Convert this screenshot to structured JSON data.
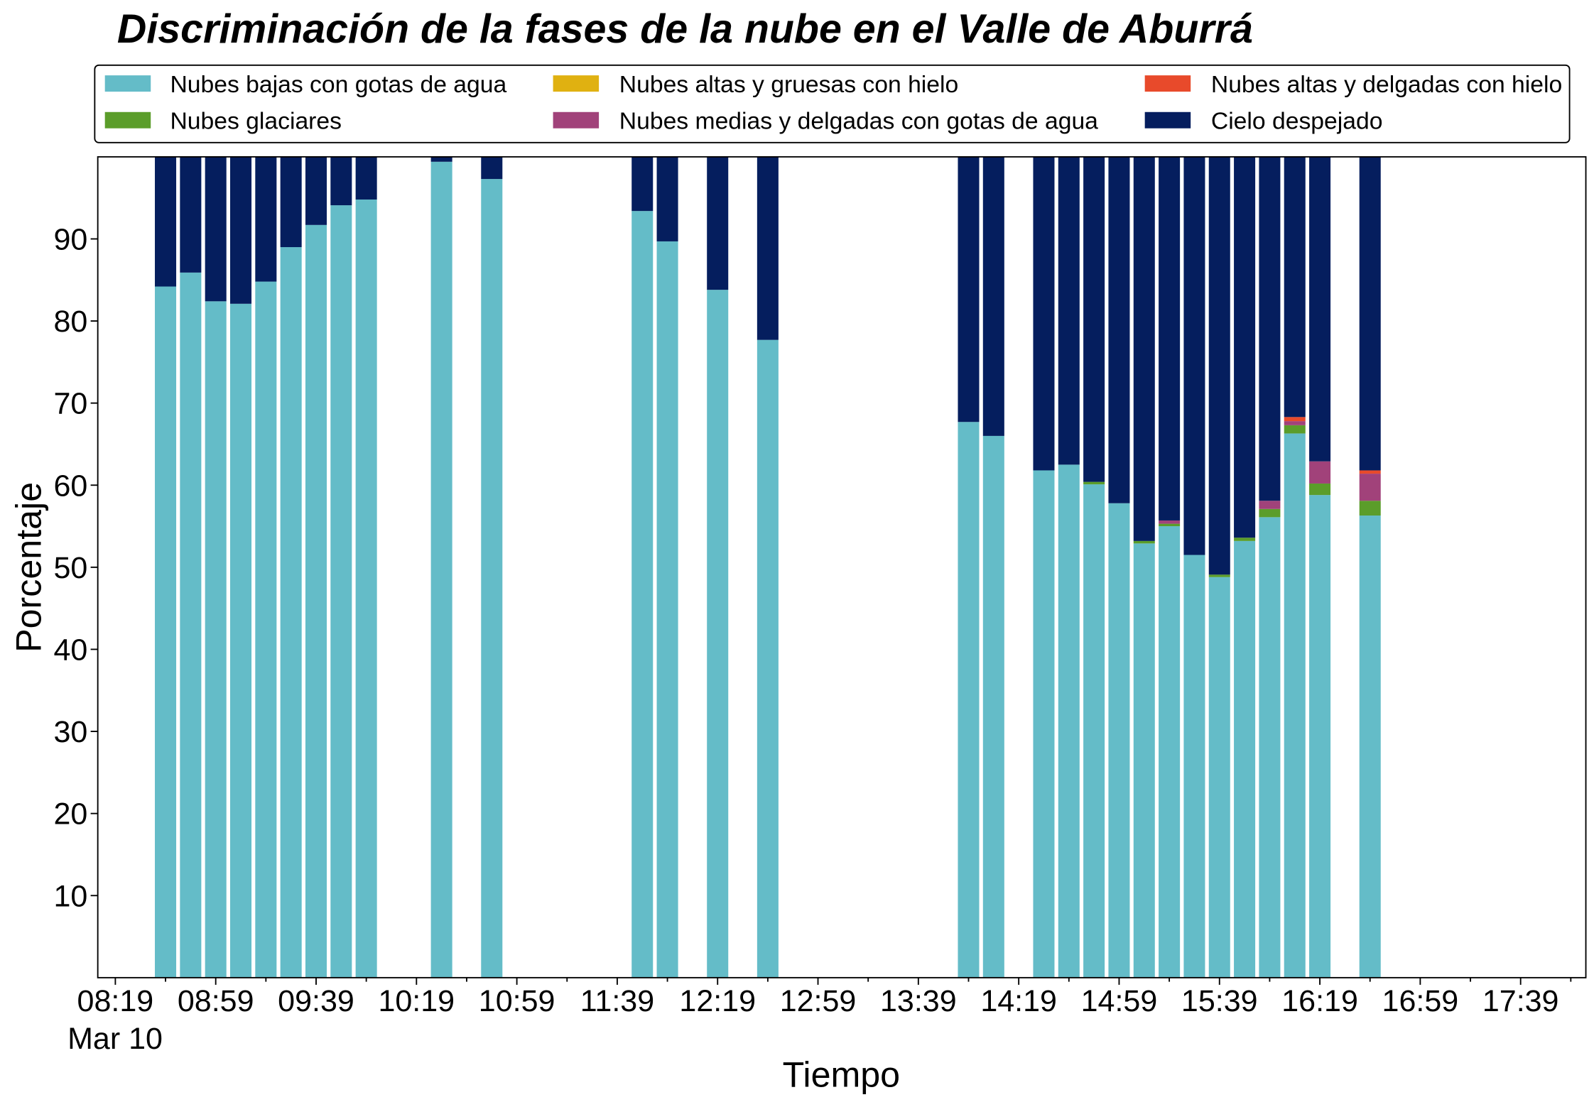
{
  "chart_data": {
    "type": "bar",
    "stacked": true,
    "title": "Discriminación de la fases de la nube en el Valle de Aburrá",
    "xlabel": "Tiempo",
    "ylabel": "Porcentaje",
    "x_date_label": "Mar 10",
    "xlim": [
      "08:12",
      "18:05"
    ],
    "ylim": [
      0,
      100
    ],
    "xticks": [
      "08:19",
      "08:59",
      "09:39",
      "10:19",
      "10:59",
      "11:39",
      "12:19",
      "12:59",
      "13:39",
      "14:19",
      "14:59",
      "15:39",
      "16:19",
      "16:59",
      "17:39"
    ],
    "yticks": [
      10,
      20,
      30,
      40,
      50,
      60,
      70,
      80,
      90
    ],
    "grid": false,
    "legend_position": "top",
    "x": [
      "08:39",
      "08:49",
      "08:59",
      "09:09",
      "09:19",
      "09:29",
      "09:39",
      "09:49",
      "09:59",
      "10:29",
      "10:49",
      "11:49",
      "11:59",
      "12:19",
      "12:39",
      "13:59",
      "14:09",
      "14:29",
      "14:39",
      "14:49",
      "14:59",
      "15:09",
      "15:19",
      "15:29",
      "15:39",
      "15:49",
      "15:59",
      "16:09",
      "16:19",
      "16:39"
    ],
    "series": [
      {
        "name": "Nubes bajas con gotas de agua",
        "color": "#64bcc8",
        "values": [
          84.2,
          85.9,
          82.4,
          82.1,
          84.8,
          89.0,
          91.7,
          94.1,
          94.8,
          99.4,
          97.3,
          93.4,
          89.7,
          83.8,
          77.7,
          67.7,
          66.0,
          61.8,
          62.5,
          60.1,
          57.8,
          52.9,
          55.0,
          51.5,
          48.8,
          53.2,
          56.1,
          66.3,
          58.8,
          56.3
        ]
      },
      {
        "name": "Nubes glaciares",
        "color": "#5b9d2a",
        "values": [
          0,
          0,
          0,
          0,
          0,
          0,
          0,
          0,
          0,
          0,
          0,
          0,
          0,
          0,
          0,
          0,
          0,
          0,
          0,
          0.3,
          0,
          0.3,
          0.3,
          0,
          0.3,
          0.4,
          1.0,
          1.0,
          1.4,
          1.8
        ]
      },
      {
        "name": "Nubes altas y gruesas con hielo",
        "color": "#e0b111",
        "values": [
          0,
          0,
          0,
          0,
          0,
          0,
          0,
          0,
          0,
          0,
          0,
          0,
          0,
          0,
          0,
          0,
          0,
          0,
          0,
          0,
          0,
          0,
          0,
          0,
          0,
          0,
          0,
          0,
          0,
          0
        ]
      },
      {
        "name": "Nubes medias y delgadas con gotas de agua",
        "color": "#a1427a",
        "values": [
          0,
          0,
          0,
          0,
          0,
          0,
          0,
          0,
          0,
          0,
          0,
          0,
          0,
          0,
          0,
          0,
          0,
          0,
          0,
          0,
          0,
          0,
          0.4,
          0,
          0,
          0,
          1.0,
          0.5,
          2.7,
          3.3
        ]
      },
      {
        "name": "Nubes altas y delgadas con hielo",
        "color": "#e84a2b",
        "values": [
          0,
          0,
          0,
          0,
          0,
          0,
          0,
          0,
          0,
          0,
          0,
          0,
          0,
          0,
          0,
          0,
          0,
          0,
          0,
          0,
          0,
          0,
          0,
          0,
          0,
          0,
          0,
          0.5,
          0,
          0.4
        ]
      },
      {
        "name": "Cielo despejado",
        "color": "#051e5e",
        "values": [
          15.8,
          14.1,
          17.6,
          17.9,
          15.2,
          11.0,
          8.3,
          5.9,
          5.2,
          0.6,
          2.7,
          6.6,
          10.3,
          16.2,
          22.3,
          32.3,
          34.0,
          38.2,
          37.5,
          39.6,
          42.2,
          46.8,
          44.3,
          48.5,
          50.9,
          46.4,
          41.9,
          31.7,
          37.1,
          38.2
        ]
      }
    ]
  }
}
